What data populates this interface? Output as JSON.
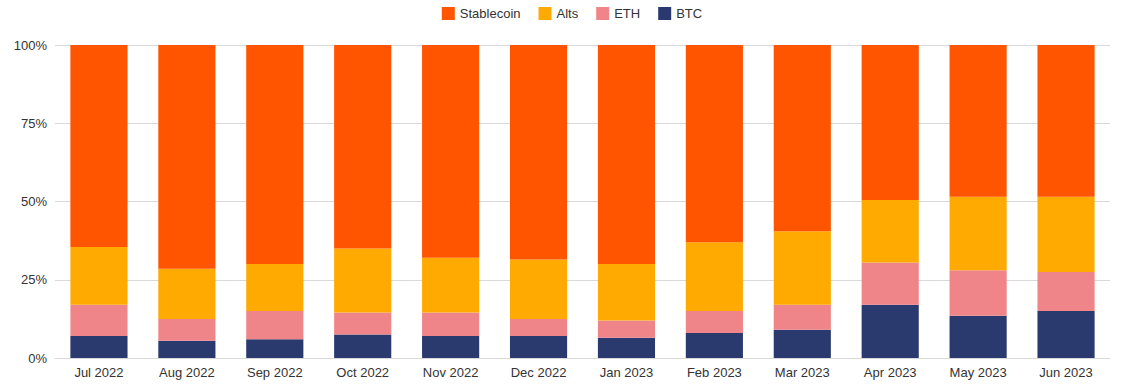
{
  "chart_data": {
    "type": "bar",
    "stacked": true,
    "grid": true,
    "legend": "top",
    "categories": [
      "Jul 2022",
      "Aug 2022",
      "Sep 2022",
      "Oct 2022",
      "Nov 2022",
      "Dec 2022",
      "Jan 2023",
      "Feb 2023",
      "Mar 2023",
      "Apr 2023",
      "May 2023",
      "Jun 2023"
    ],
    "series": [
      {
        "name": "Stablecoin",
        "color": "#ff5500",
        "values": [
          64.5,
          71.5,
          70,
          65,
          68,
          68.5,
          70,
          63,
          59.5,
          49.5,
          48.5,
          48.5
        ]
      },
      {
        "name": "Alts",
        "color": "#ffaa00",
        "values": [
          18.5,
          16,
          15,
          20.5,
          17.5,
          19,
          18,
          22,
          23.5,
          20,
          23.5,
          24
        ]
      },
      {
        "name": "ETH",
        "color": "#f08589",
        "values": [
          10,
          7,
          9,
          7,
          7.5,
          5.5,
          5.5,
          7,
          8,
          13.5,
          14.5,
          12.5
        ]
      },
      {
        "name": "BTC",
        "color": "#2b3a6e",
        "values": [
          7,
          5.5,
          6,
          7.5,
          7,
          7,
          6.5,
          8,
          9,
          17,
          13.5,
          15
        ]
      }
    ],
    "ylim": [
      0,
      100
    ],
    "yticks": [
      {
        "value": 0,
        "label": "0%"
      },
      {
        "value": 25,
        "label": "25%"
      },
      {
        "value": 50,
        "label": "50%"
      },
      {
        "value": 75,
        "label": "75%"
      },
      {
        "value": 100,
        "label": "100%"
      }
    ]
  }
}
